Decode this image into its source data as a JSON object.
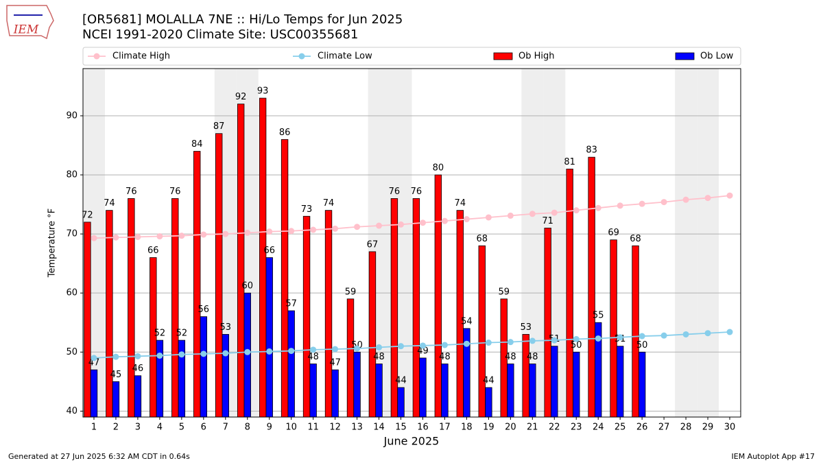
{
  "chart_data": {
    "type": "bar_line",
    "title": "[OR5681] MOLALLA 7NE :: Hi/Lo Temps for Jun 2025",
    "subtitle": "NCEI 1991-2020 Climate Site: USC00355681",
    "y_label": "Temperature °F",
    "x_label": "June 2025",
    "x": [
      1,
      2,
      3,
      4,
      5,
      6,
      7,
      8,
      9,
      10,
      11,
      12,
      13,
      14,
      15,
      16,
      17,
      18,
      19,
      20,
      21,
      22,
      23,
      24,
      25,
      26,
      27,
      28,
      29,
      30
    ],
    "xlim": [
      0.5,
      30.5
    ],
    "xticks": [
      1,
      2,
      3,
      4,
      5,
      6,
      7,
      8,
      9,
      10,
      11,
      12,
      13,
      14,
      15,
      16,
      17,
      18,
      19,
      20,
      21,
      22,
      23,
      24,
      25,
      26,
      27,
      28,
      29,
      30
    ],
    "ylim": [
      39,
      98
    ],
    "yticks": [
      40,
      50,
      60,
      70,
      80,
      90
    ],
    "grid": true,
    "shaded_x": [
      1,
      7,
      8,
      14,
      15,
      21,
      22,
      28,
      29
    ],
    "series": [
      {
        "name": "Climate High",
        "kind": "line",
        "color": "#ffc0cb",
        "values": [
          69.3,
          69.4,
          69.5,
          69.6,
          69.7,
          69.9,
          70.0,
          70.2,
          70.4,
          70.5,
          70.7,
          70.9,
          71.2,
          71.4,
          71.6,
          71.9,
          72.2,
          72.5,
          72.8,
          73.1,
          73.4,
          73.6,
          74.0,
          74.4,
          74.8,
          75.1,
          75.4,
          75.8,
          76.1,
          76.5
        ]
      },
      {
        "name": "Climate Low",
        "kind": "line",
        "color": "#87ceeb",
        "values": [
          49.0,
          49.2,
          49.3,
          49.4,
          49.6,
          49.7,
          49.8,
          50.0,
          50.1,
          50.2,
          50.4,
          50.5,
          50.6,
          50.8,
          51.0,
          51.1,
          51.2,
          51.4,
          51.6,
          51.7,
          51.9,
          52.0,
          52.2,
          52.3,
          52.5,
          52.7,
          52.8,
          53.0,
          53.2,
          53.4
        ]
      },
      {
        "name": "Ob High",
        "kind": "bar",
        "color": "#ff0000",
        "values": [
          72,
          74,
          76,
          66,
          76,
          84,
          87,
          92,
          93,
          86,
          73,
          74,
          59,
          67,
          76,
          76,
          80,
          74,
          68,
          59,
          53,
          71,
          81,
          83,
          69,
          68,
          null,
          null,
          null,
          null
        ]
      },
      {
        "name": "Ob Low",
        "kind": "bar",
        "color": "#0000ff",
        "values": [
          47,
          45,
          46,
          52,
          52,
          56,
          53,
          60,
          66,
          57,
          48,
          47,
          50,
          48,
          44,
          49,
          48,
          54,
          44,
          48,
          48,
          51,
          50,
          55,
          51,
          50,
          null,
          null,
          null,
          null
        ]
      }
    ]
  },
  "logo": "IEM",
  "footer_left": "Generated at 27 Jun 2025 6:32 AM CDT in 0.64s",
  "footer_right": "IEM Autoplot App #17"
}
